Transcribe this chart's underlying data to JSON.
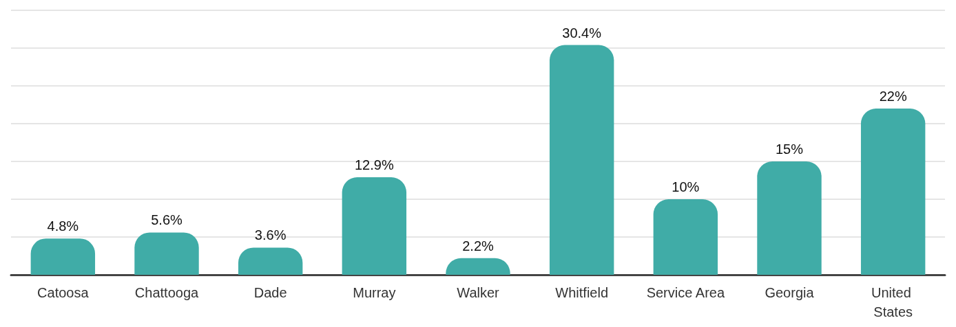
{
  "chart_data": {
    "type": "bar",
    "categories": [
      "Catoosa",
      "Chattooga",
      "Dade",
      "Murray",
      "Walker",
      "Whitfield",
      "Service Area",
      "Georgia",
      "United States"
    ],
    "values": [
      4.8,
      5.6,
      3.6,
      12.9,
      2.2,
      30.4,
      10,
      15,
      22
    ],
    "value_labels": [
      "4.8%",
      "5.6%",
      "3.6%",
      "12.9%",
      "2.2%",
      "30.4%",
      "10%",
      "15%",
      "22%"
    ],
    "color": "#40aca7",
    "ylim": [
      0,
      35
    ],
    "yticks": [
      0,
      5,
      10,
      15,
      20,
      25,
      30,
      35
    ],
    "grid": "y",
    "tick_labels": "x"
  }
}
